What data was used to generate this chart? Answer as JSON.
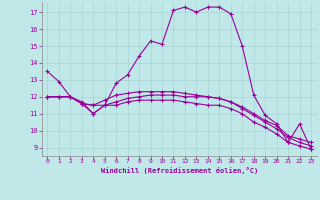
{
  "xlabel": "Windchill (Refroidissement éolien,°C)",
  "bg_color": "#c0e8e8",
  "line_color": "#990099",
  "grid_color": "#aad4d4",
  "xlim": [
    -0.5,
    23.5
  ],
  "ylim": [
    8.5,
    17.6
  ],
  "xticks": [
    0,
    1,
    2,
    3,
    4,
    5,
    6,
    7,
    8,
    9,
    10,
    11,
    12,
    13,
    14,
    15,
    16,
    17,
    18,
    19,
    20,
    21,
    22,
    23
  ],
  "yticks": [
    9,
    10,
    11,
    12,
    13,
    14,
    15,
    16,
    17
  ],
  "series": [
    {
      "x": [
        0,
        1,
        2,
        3,
        4,
        5,
        6,
        7,
        8,
        9,
        10,
        11,
        12,
        13,
        14,
        15,
        16,
        17,
        18,
        19,
        20,
        21,
        22,
        23
      ],
      "y": [
        13.5,
        12.9,
        12.0,
        11.7,
        11.0,
        11.5,
        12.8,
        13.3,
        14.4,
        15.3,
        15.1,
        17.1,
        17.3,
        17.0,
        17.3,
        17.3,
        16.9,
        15.0,
        12.1,
        10.9,
        10.4,
        9.3,
        10.4,
        8.9
      ]
    },
    {
      "x": [
        0,
        1,
        2,
        3,
        4,
        5,
        6,
        7,
        8,
        9,
        10,
        11,
        12,
        13,
        14,
        15,
        16,
        17,
        18,
        19,
        20,
        21,
        22,
        23
      ],
      "y": [
        12.0,
        12.0,
        12.0,
        11.6,
        11.0,
        11.5,
        11.5,
        11.7,
        11.8,
        11.8,
        11.8,
        11.8,
        11.7,
        11.6,
        11.5,
        11.5,
        11.3,
        11.0,
        10.5,
        10.2,
        9.8,
        9.3,
        9.1,
        8.9
      ]
    },
    {
      "x": [
        0,
        1,
        2,
        3,
        4,
        5,
        6,
        7,
        8,
        9,
        10,
        11,
        12,
        13,
        14,
        15,
        16,
        17,
        18,
        19,
        20,
        21,
        22,
        23
      ],
      "y": [
        12.0,
        12.0,
        12.0,
        11.6,
        11.5,
        11.5,
        11.7,
        11.9,
        12.0,
        12.1,
        12.1,
        12.1,
        12.0,
        12.0,
        12.0,
        11.9,
        11.7,
        11.3,
        10.9,
        10.5,
        10.1,
        9.6,
        9.3,
        9.1
      ]
    },
    {
      "x": [
        0,
        1,
        2,
        3,
        4,
        5,
        6,
        7,
        8,
        9,
        10,
        11,
        12,
        13,
        14,
        15,
        16,
        17,
        18,
        19,
        20,
        21,
        22,
        23
      ],
      "y": [
        12.0,
        12.0,
        12.0,
        11.6,
        11.5,
        11.8,
        12.1,
        12.2,
        12.3,
        12.3,
        12.3,
        12.3,
        12.2,
        12.1,
        12.0,
        11.9,
        11.7,
        11.4,
        11.0,
        10.6,
        10.3,
        9.7,
        9.5,
        9.3
      ]
    }
  ]
}
